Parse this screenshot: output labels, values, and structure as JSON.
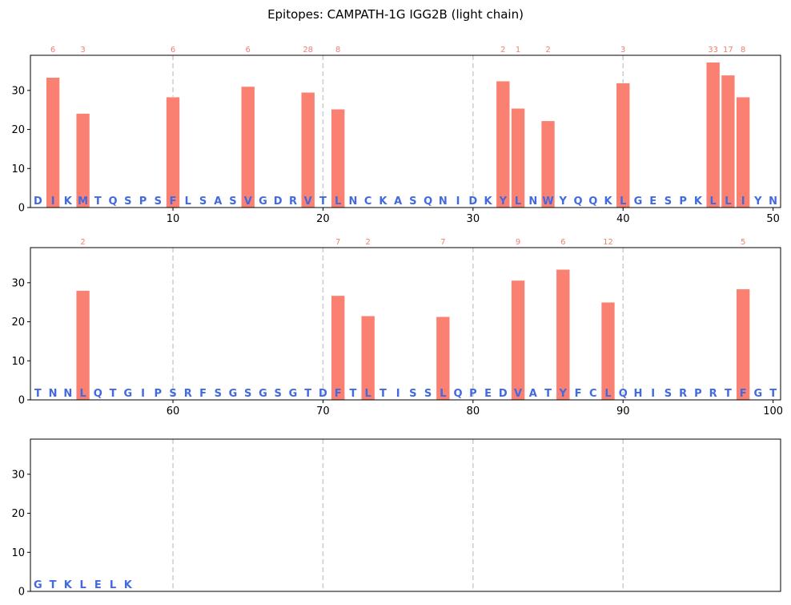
{
  "chart_data": {
    "type": "bar",
    "title": "Epitopes: CAMPATH-1G IGG2B (light chain)",
    "ylim": [
      0,
      39
    ],
    "yticks": [
      0,
      10,
      20,
      30
    ],
    "grid": "dashed vertical lines every 10 positions",
    "colors": {
      "bar": "#fa8072",
      "highlight_letter": "#4169e1",
      "normal_letter": "#4169e1",
      "label": "#f08070",
      "grid": "#cccccc"
    },
    "panels": [
      {
        "name": "positions 1-50",
        "xlim": [
          0.5,
          50.5
        ],
        "xticks": [
          10,
          20,
          30,
          40,
          50
        ],
        "sequence": "DIKMTQSPSFLSASVGDRVTLNCKASQNIDKYLNWYQQKLGESPKLLIYN",
        "bars": [
          {
            "x": 2,
            "y": 33.3,
            "label": "6"
          },
          {
            "x": 4,
            "y": 24.1,
            "label": "3"
          },
          {
            "x": 10,
            "y": 28.3,
            "label": "6"
          },
          {
            "x": 15,
            "y": 31.0,
            "label": "6"
          },
          {
            "x": 19,
            "y": 29.5,
            "label": "28"
          },
          {
            "x": 21,
            "y": 25.2,
            "label": "8"
          },
          {
            "x": 32,
            "y": 32.4,
            "label": "2"
          },
          {
            "x": 33,
            "y": 25.4,
            "label": "1"
          },
          {
            "x": 35,
            "y": 22.2,
            "label": "2"
          },
          {
            "x": 40,
            "y": 31.9,
            "label": "3"
          },
          {
            "x": 46,
            "y": 37.2,
            "label": "33"
          },
          {
            "x": 47,
            "y": 33.9,
            "label": "17"
          },
          {
            "x": 48,
            "y": 28.3,
            "label": "8"
          }
        ]
      },
      {
        "name": "positions 51-100",
        "xlim": [
          50.5,
          100.5
        ],
        "xticks": [
          60,
          70,
          80,
          90,
          100
        ],
        "sequence": "TNNLQTGIPSRFSGSGSGTDFTLTISSLQPEDVATYFCLQHISRPRTFGT",
        "bars": [
          {
            "x": 54,
            "y": 28.0,
            "label": "2"
          },
          {
            "x": 71,
            "y": 26.7,
            "label": "7"
          },
          {
            "x": 73,
            "y": 21.5,
            "label": "2"
          },
          {
            "x": 78,
            "y": 21.3,
            "label": "7"
          },
          {
            "x": 83,
            "y": 30.6,
            "label": "9"
          },
          {
            "x": 86,
            "y": 33.4,
            "label": "6"
          },
          {
            "x": 89,
            "y": 25.0,
            "label": "12"
          },
          {
            "x": 98,
            "y": 28.4,
            "label": "5"
          }
        ]
      },
      {
        "name": "positions 101-107",
        "xlim": [
          100.5,
          150.5
        ],
        "xticks": [],
        "sequence": "GTKLELK",
        "bars": []
      }
    ]
  }
}
